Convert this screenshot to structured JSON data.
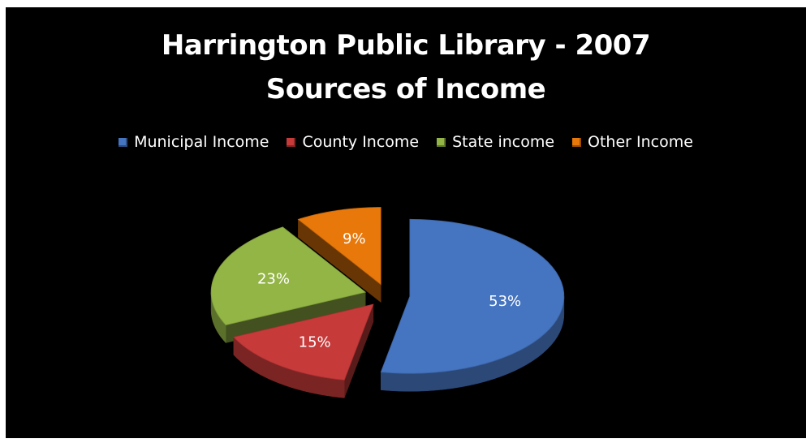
{
  "chart_data": {
    "type": "pie",
    "title": "Harrington Public Library - 2007",
    "subtitle": "Sources of Income",
    "legend_position": "top",
    "slices": [
      {
        "name": "Municipal Income",
        "value": 53,
        "label": "53%",
        "color": "#4574c0"
      },
      {
        "name": "County Income",
        "value": 15,
        "label": "15%",
        "color": "#c63a3a"
      },
      {
        "name": "State income",
        "value": 23,
        "label": "23%",
        "color": "#93b545"
      },
      {
        "name": "Other Income",
        "value": 9,
        "label": "9%",
        "color": "#e8780a"
      }
    ]
  }
}
